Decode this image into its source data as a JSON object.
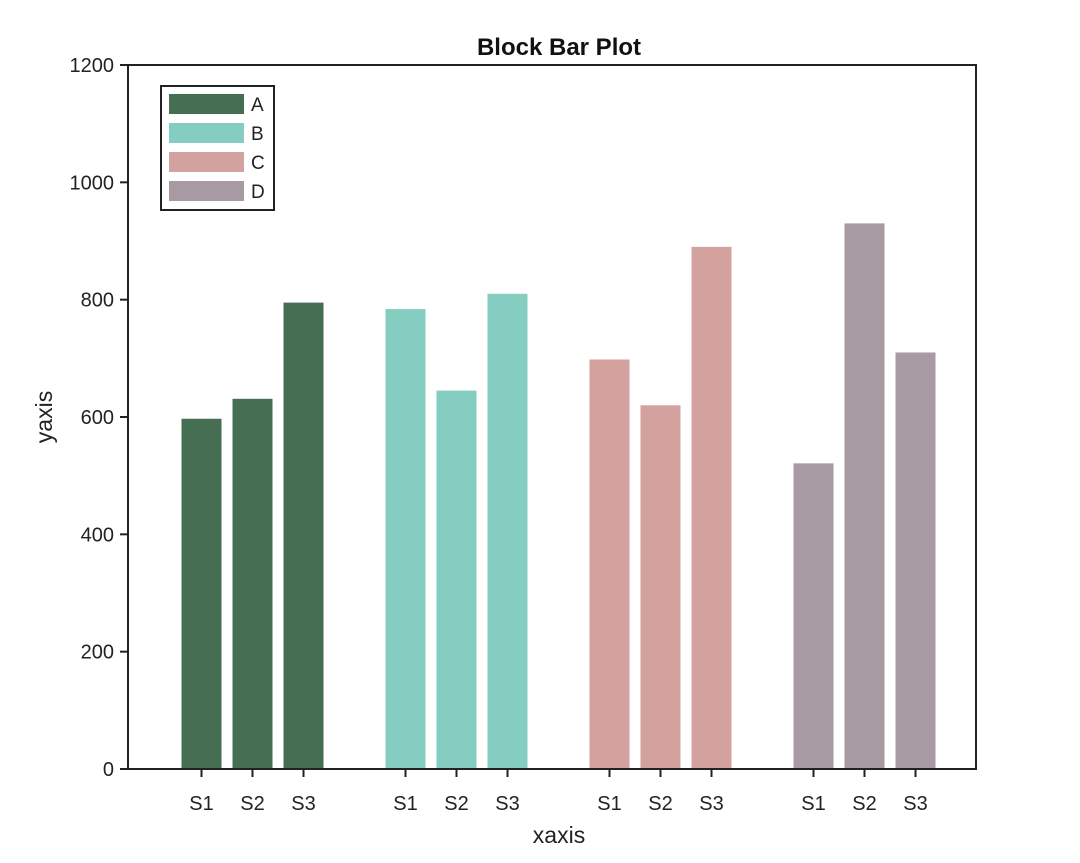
{
  "chart_data": {
    "type": "bar",
    "title": "Block Bar Plot",
    "xlabel": "xaxis",
    "ylabel": "yaxis",
    "ylim": [
      0,
      1200
    ],
    "yticks": [
      "0",
      "200",
      "400",
      "600",
      "800",
      "1000",
      "1200"
    ],
    "legend_position": "top-left",
    "grid": false,
    "sub_categories": [
      "S1",
      "S2",
      "S3"
    ],
    "series": [
      {
        "name": "A",
        "color": "#466e53",
        "values": [
          597,
          631,
          795
        ]
      },
      {
        "name": "B",
        "color": "#84cdc0",
        "values": [
          784,
          645,
          810
        ]
      },
      {
        "name": "C",
        "color": "#d3a29f",
        "values": [
          698,
          620,
          890
        ]
      },
      {
        "name": "D",
        "color": "#a89aa3",
        "values": [
          521,
          930,
          710
        ]
      }
    ]
  }
}
